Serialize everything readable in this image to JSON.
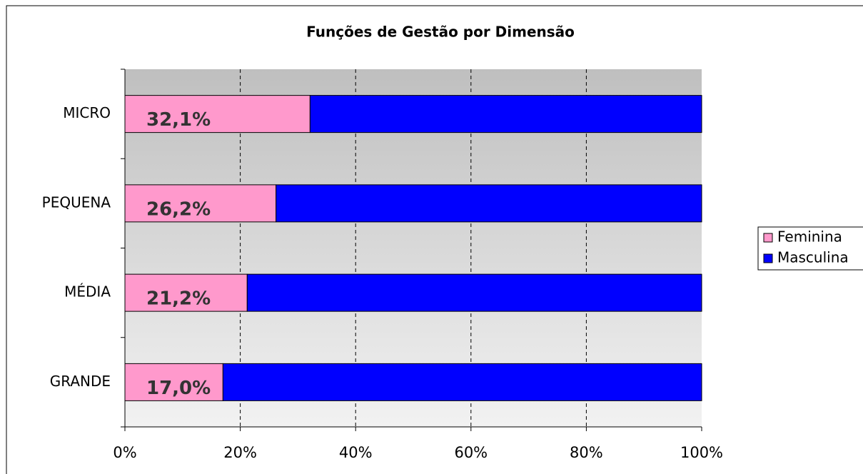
{
  "chart_data": {
    "type": "stacked-bar-horizontal",
    "title": "Funções de Gestão por Dimensão",
    "categories": [
      "MICRO",
      "PEQUENA",
      "MÉDIA",
      "GRANDE"
    ],
    "series": [
      {
        "name": "Feminina",
        "color": "#ff99cc",
        "values": [
          32.1,
          26.2,
          21.2,
          17.0
        ],
        "value_labels": [
          "32,1%",
          "26,2%",
          "21,2%",
          "17,0%"
        ]
      },
      {
        "name": "Masculina",
        "color": "#0000ff",
        "values": [
          67.9,
          73.8,
          78.8,
          83.0
        ]
      }
    ],
    "xlim": [
      0,
      100
    ],
    "xticks": [
      {
        "value": 0,
        "label": "0%"
      },
      {
        "value": 20,
        "label": "20%"
      },
      {
        "value": 40,
        "label": "40%"
      },
      {
        "value": 60,
        "label": "60%"
      },
      {
        "value": 80,
        "label": "80%"
      },
      {
        "value": 100,
        "label": "100%"
      }
    ],
    "grid": true,
    "legend": "right"
  }
}
